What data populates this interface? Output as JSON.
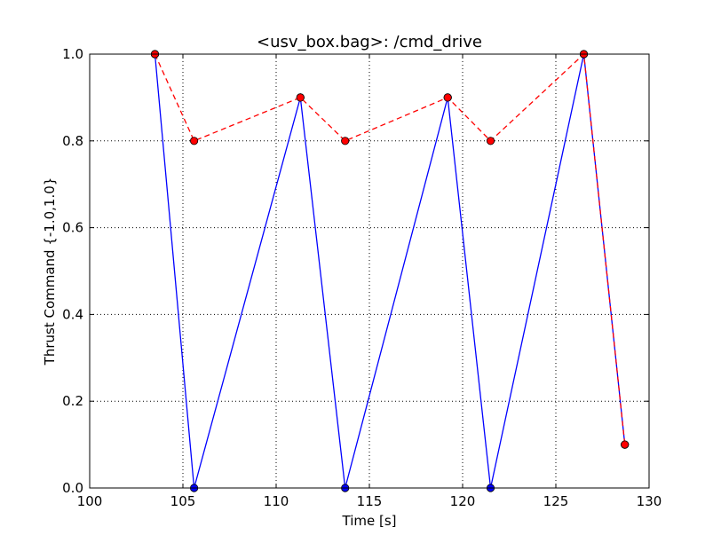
{
  "chart_data": {
    "type": "line",
    "title": "<usv_box.bag>: /cmd_drive",
    "xlabel": "Time [s]",
    "ylabel": "Thrust Command {-1.0,1.0}",
    "xlim": [
      100,
      130
    ],
    "ylim": [
      0.0,
      1.0
    ],
    "xticks": [
      100,
      105,
      110,
      115,
      120,
      125,
      130
    ],
    "yticks": [
      0.0,
      0.2,
      0.4,
      0.6,
      0.8,
      1.0
    ],
    "xtick_labels": [
      "100",
      "105",
      "110",
      "115",
      "120",
      "125",
      "130"
    ],
    "ytick_labels": [
      "0.0",
      "0.2",
      "0.4",
      "0.6",
      "0.8",
      "1.0"
    ],
    "grid": true,
    "series": [
      {
        "style": "solid",
        "color": "#0000ff",
        "marker_color": "#0000ff",
        "x": [
          103.5,
          105.6,
          111.3,
          113.7,
          119.2,
          121.5,
          126.5,
          128.7
        ],
        "y": [
          1.0,
          0.0,
          0.9,
          0.0,
          0.9,
          0.0,
          1.0,
          0.1
        ]
      },
      {
        "style": "dashed",
        "color": "#ff0000",
        "marker_color": "#ff0000",
        "x": [
          103.5,
          105.6,
          111.3,
          113.7,
          119.2,
          121.5,
          126.5,
          128.7
        ],
        "y": [
          1.0,
          0.8,
          0.9,
          0.8,
          0.9,
          0.8,
          1.0,
          0.1
        ]
      }
    ]
  }
}
